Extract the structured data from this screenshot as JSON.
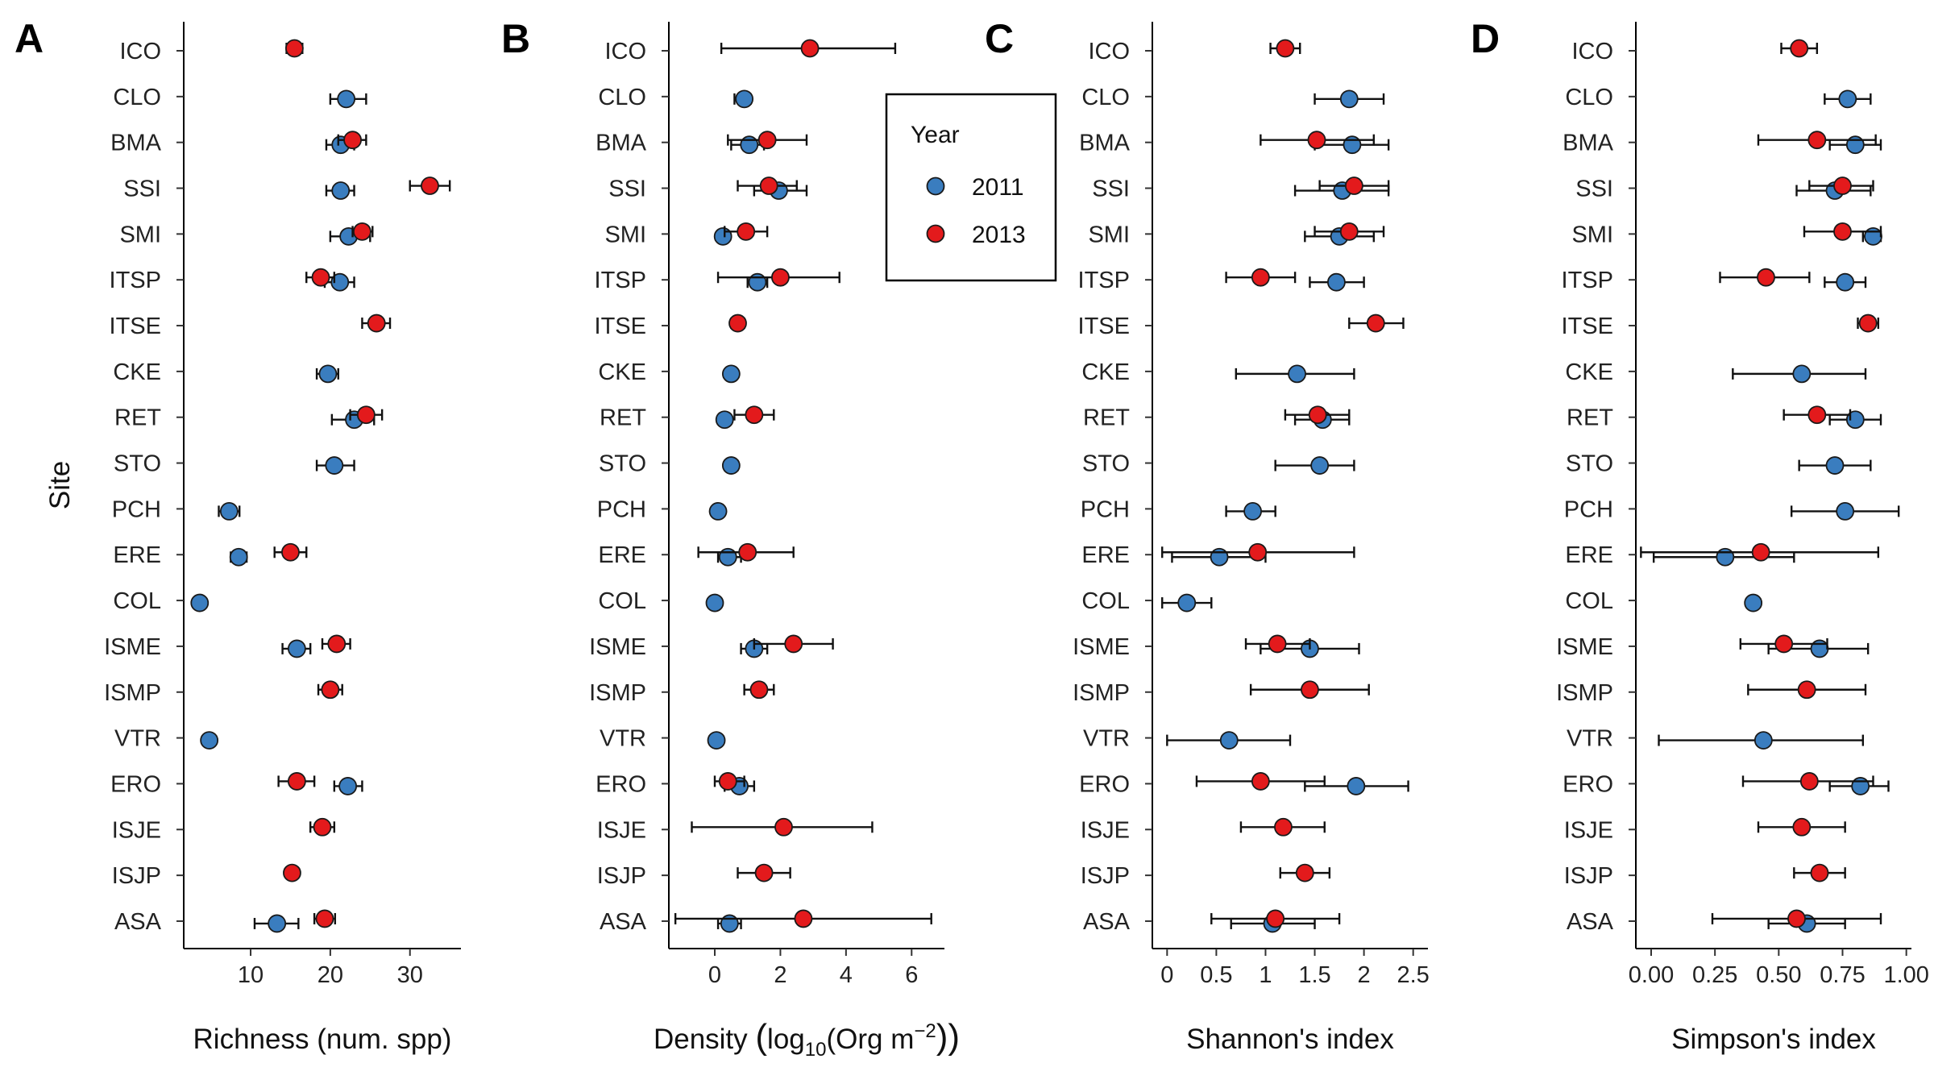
{
  "figure": {
    "y_title": "Site",
    "sites": [
      "ICO",
      "CLO",
      "BMA",
      "SSI",
      "SMI",
      "ITSP",
      "ITSE",
      "CKE",
      "RET",
      "STO",
      "PCH",
      "ERE",
      "COL",
      "ISME",
      "ISMP",
      "VTR",
      "ERO",
      "ISJE",
      "ISJP",
      "ASA"
    ],
    "legend": {
      "title": "Year",
      "entries": [
        {
          "label": "2011",
          "color": "#3a7dbf"
        },
        {
          "label": "2013",
          "color": "#e31a1c"
        }
      ]
    }
  },
  "chart_data": [
    {
      "type": "scatter",
      "panel": "A",
      "xlabel": "Richness (num. spp)",
      "xlim": [
        1.6,
        36.4
      ],
      "xticks": [
        10,
        20,
        30
      ],
      "series": [
        {
          "name": "2011",
          "points": [
            {
              "site": "CLO",
              "x": 22,
              "lo": 20,
              "hi": 24.5
            },
            {
              "site": "BMA",
              "x": 21.3,
              "lo": 19.5,
              "hi": 23
            },
            {
              "site": "SSI",
              "x": 21.3,
              "lo": 19.5,
              "hi": 23
            },
            {
              "site": "SMI",
              "x": 22.3,
              "lo": 20,
              "hi": 25
            },
            {
              "site": "ITSP",
              "x": 21.2,
              "lo": 19.3,
              "hi": 23
            },
            {
              "site": "CKE",
              "x": 19.7,
              "lo": 18.3,
              "hi": 21
            },
            {
              "site": "RET",
              "x": 23,
              "lo": 20.2,
              "hi": 25.5
            },
            {
              "site": "STO",
              "x": 20.5,
              "lo": 18.3,
              "hi": 23
            },
            {
              "site": "PCH",
              "x": 7.3,
              "lo": 6,
              "hi": 8.6
            },
            {
              "site": "ERE",
              "x": 8.5,
              "lo": 7.5,
              "hi": 9.5
            },
            {
              "site": "COL",
              "x": 3.6,
              "lo": 3.6,
              "hi": 3.6
            },
            {
              "site": "ISME",
              "x": 15.8,
              "lo": 14,
              "hi": 17.5
            },
            {
              "site": "VTR",
              "x": 4.8,
              "lo": 4.3,
              "hi": 5.3
            },
            {
              "site": "ERO",
              "x": 22.2,
              "lo": 20.5,
              "hi": 24
            },
            {
              "site": "ASA",
              "x": 13.3,
              "lo": 10.5,
              "hi": 16
            }
          ]
        },
        {
          "name": "2013",
          "points": [
            {
              "site": "ICO",
              "x": 15.5,
              "lo": 14.5,
              "hi": 16.5
            },
            {
              "site": "BMA",
              "x": 22.8,
              "lo": 21,
              "hi": 24.5
            },
            {
              "site": "SSI",
              "x": 32.5,
              "lo": 30,
              "hi": 35
            },
            {
              "site": "SMI",
              "x": 24,
              "lo": 22.8,
              "hi": 25.3
            },
            {
              "site": "ITSP",
              "x": 18.8,
              "lo": 17,
              "hi": 20.5
            },
            {
              "site": "ITSE",
              "x": 25.8,
              "lo": 24,
              "hi": 27.5
            },
            {
              "site": "RET",
              "x": 24.5,
              "lo": 22.5,
              "hi": 26.5
            },
            {
              "site": "ERE",
              "x": 15,
              "lo": 13,
              "hi": 17
            },
            {
              "site": "ISME",
              "x": 20.8,
              "lo": 19,
              "hi": 22.5
            },
            {
              "site": "ISMP",
              "x": 20,
              "lo": 18.5,
              "hi": 21.5
            },
            {
              "site": "ERO",
              "x": 15.8,
              "lo": 13.5,
              "hi": 18
            },
            {
              "site": "ISJE",
              "x": 19,
              "lo": 17.5,
              "hi": 20.5
            },
            {
              "site": "ISJP",
              "x": 15.2,
              "lo": 14.5,
              "hi": 16
            },
            {
              "site": "ASA",
              "x": 19.3,
              "lo": 18,
              "hi": 20.6
            }
          ]
        }
      ]
    },
    {
      "type": "scatter",
      "panel": "B",
      "xlabel": "Density (log10(Org m−2))",
      "xlim": [
        -1.4,
        7.0
      ],
      "xticks": [
        0,
        2,
        4,
        6
      ],
      "series": [
        {
          "name": "2011",
          "points": [
            {
              "site": "CLO",
              "x": 0.9,
              "lo": 0.6,
              "hi": 1.1
            },
            {
              "site": "BMA",
              "x": 1.05,
              "lo": 0.5,
              "hi": 1.5
            },
            {
              "site": "SSI",
              "x": 1.95,
              "lo": 1.2,
              "hi": 2.8
            },
            {
              "site": "SMI",
              "x": 0.25,
              "lo": 0.15,
              "hi": 0.35
            },
            {
              "site": "ITSP",
              "x": 1.3,
              "lo": 1.0,
              "hi": 1.6
            },
            {
              "site": "CKE",
              "x": 0.5,
              "lo": 0.45,
              "hi": 0.55
            },
            {
              "site": "RET",
              "x": 0.3,
              "lo": 0.25,
              "hi": 0.35
            },
            {
              "site": "STO",
              "x": 0.5,
              "lo": 0.3,
              "hi": 0.7
            },
            {
              "site": "PCH",
              "x": 0.1,
              "lo": 0.1,
              "hi": 0.1
            },
            {
              "site": "ERE",
              "x": 0.4,
              "lo": 0.1,
              "hi": 0.8
            },
            {
              "site": "COL",
              "x": 0.0,
              "lo": 0.0,
              "hi": 0.0
            },
            {
              "site": "ISME",
              "x": 1.2,
              "lo": 0.8,
              "hi": 1.6
            },
            {
              "site": "VTR",
              "x": 0.05,
              "lo": 0.05,
              "hi": 0.05
            },
            {
              "site": "ERO",
              "x": 0.75,
              "lo": 0.3,
              "hi": 1.2
            },
            {
              "site": "ASA",
              "x": 0.45,
              "lo": 0.1,
              "hi": 0.8
            }
          ]
        },
        {
          "name": "2013",
          "points": [
            {
              "site": "ICO",
              "x": 2.9,
              "lo": 0.2,
              "hi": 5.5
            },
            {
              "site": "BMA",
              "x": 1.6,
              "lo": 0.4,
              "hi": 2.8
            },
            {
              "site": "SSI",
              "x": 1.65,
              "lo": 0.7,
              "hi": 2.5
            },
            {
              "site": "SMI",
              "x": 0.95,
              "lo": 0.3,
              "hi": 1.6
            },
            {
              "site": "ITSP",
              "x": 2.0,
              "lo": 0.1,
              "hi": 3.8
            },
            {
              "site": "ITSE",
              "x": 0.7,
              "lo": 0.5,
              "hi": 0.9
            },
            {
              "site": "RET",
              "x": 1.2,
              "lo": 0.6,
              "hi": 1.8
            },
            {
              "site": "ERE",
              "x": 1.0,
              "lo": -0.5,
              "hi": 2.4
            },
            {
              "site": "ISME",
              "x": 2.4,
              "lo": 1.2,
              "hi": 3.6
            },
            {
              "site": "ISMP",
              "x": 1.35,
              "lo": 0.9,
              "hi": 1.8
            },
            {
              "site": "ERO",
              "x": 0.4,
              "lo": 0.0,
              "hi": 0.9
            },
            {
              "site": "ISJE",
              "x": 2.1,
              "lo": -0.7,
              "hi": 4.8
            },
            {
              "site": "ISJP",
              "x": 1.5,
              "lo": 0.7,
              "hi": 2.3
            },
            {
              "site": "ASA",
              "x": 2.7,
              "lo": -1.2,
              "hi": 6.6
            }
          ]
        }
      ]
    },
    {
      "type": "scatter",
      "panel": "C",
      "xlabel": "Shannon's index",
      "xlim": [
        -0.15,
        2.65
      ],
      "xticks": [
        0.0,
        0.5,
        1.0,
        1.5,
        2.0,
        2.5
      ],
      "series": [
        {
          "name": "2011",
          "points": [
            {
              "site": "CLO",
              "x": 1.85,
              "lo": 1.5,
              "hi": 2.2
            },
            {
              "site": "BMA",
              "x": 1.88,
              "lo": 1.5,
              "hi": 2.25
            },
            {
              "site": "SSI",
              "x": 1.78,
              "lo": 1.3,
              "hi": 2.25
            },
            {
              "site": "SMI",
              "x": 1.75,
              "lo": 1.4,
              "hi": 2.1
            },
            {
              "site": "ITSP",
              "x": 1.72,
              "lo": 1.45,
              "hi": 2.0
            },
            {
              "site": "CKE",
              "x": 1.32,
              "lo": 0.7,
              "hi": 1.9
            },
            {
              "site": "RET",
              "x": 1.58,
              "lo": 1.3,
              "hi": 1.85
            },
            {
              "site": "STO",
              "x": 1.55,
              "lo": 1.1,
              "hi": 1.9
            },
            {
              "site": "PCH",
              "x": 0.87,
              "lo": 0.6,
              "hi": 1.1
            },
            {
              "site": "ERE",
              "x": 0.53,
              "lo": 0.05,
              "hi": 1.0
            },
            {
              "site": "COL",
              "x": 0.2,
              "lo": -0.05,
              "hi": 0.45
            },
            {
              "site": "ISME",
              "x": 1.45,
              "lo": 0.95,
              "hi": 1.95
            },
            {
              "site": "VTR",
              "x": 0.63,
              "lo": 0.0,
              "hi": 1.25
            },
            {
              "site": "ERO",
              "x": 1.92,
              "lo": 1.4,
              "hi": 2.45
            },
            {
              "site": "ASA",
              "x": 1.07,
              "lo": 0.65,
              "hi": 1.5
            }
          ]
        },
        {
          "name": "2013",
          "points": [
            {
              "site": "ICO",
              "x": 1.2,
              "lo": 1.05,
              "hi": 1.35
            },
            {
              "site": "BMA",
              "x": 1.52,
              "lo": 0.95,
              "hi": 2.1
            },
            {
              "site": "SSI",
              "x": 1.9,
              "lo": 1.55,
              "hi": 2.25
            },
            {
              "site": "SMI",
              "x": 1.85,
              "lo": 1.5,
              "hi": 2.2
            },
            {
              "site": "ITSP",
              "x": 0.95,
              "lo": 0.6,
              "hi": 1.3
            },
            {
              "site": "ITSE",
              "x": 2.12,
              "lo": 1.85,
              "hi": 2.4
            },
            {
              "site": "RET",
              "x": 1.53,
              "lo": 1.2,
              "hi": 1.85
            },
            {
              "site": "ERE",
              "x": 0.92,
              "lo": -0.05,
              "hi": 1.9
            },
            {
              "site": "ISME",
              "x": 1.12,
              "lo": 0.8,
              "hi": 1.45
            },
            {
              "site": "ISMP",
              "x": 1.45,
              "lo": 0.85,
              "hi": 2.05
            },
            {
              "site": "ERO",
              "x": 0.95,
              "lo": 0.3,
              "hi": 1.6
            },
            {
              "site": "ISJE",
              "x": 1.18,
              "lo": 0.75,
              "hi": 1.6
            },
            {
              "site": "ISJP",
              "x": 1.4,
              "lo": 1.15,
              "hi": 1.65
            },
            {
              "site": "ASA",
              "x": 1.1,
              "lo": 0.45,
              "hi": 1.75
            }
          ]
        }
      ]
    },
    {
      "type": "scatter",
      "panel": "D",
      "xlabel": "Simpson's index",
      "xlim": [
        -0.06,
        1.02
      ],
      "xticks": [
        0.0,
        0.25,
        0.5,
        0.75,
        1.0
      ],
      "xticklabels": [
        "0.00",
        "0.25",
        "0.50",
        "0.75",
        "1.00"
      ],
      "series": [
        {
          "name": "2011",
          "points": [
            {
              "site": "CLO",
              "x": 0.77,
              "lo": 0.68,
              "hi": 0.86
            },
            {
              "site": "BMA",
              "x": 0.8,
              "lo": 0.7,
              "hi": 0.9
            },
            {
              "site": "SSI",
              "x": 0.72,
              "lo": 0.57,
              "hi": 0.86
            },
            {
              "site": "SMI",
              "x": 0.87,
              "lo": 0.83,
              "hi": 0.9
            },
            {
              "site": "ITSP",
              "x": 0.76,
              "lo": 0.68,
              "hi": 0.84
            },
            {
              "site": "CKE",
              "x": 0.59,
              "lo": 0.32,
              "hi": 0.84
            },
            {
              "site": "RET",
              "x": 0.8,
              "lo": 0.7,
              "hi": 0.9
            },
            {
              "site": "STO",
              "x": 0.72,
              "lo": 0.58,
              "hi": 0.86
            },
            {
              "site": "PCH",
              "x": 0.76,
              "lo": 0.55,
              "hi": 0.97
            },
            {
              "site": "ERE",
              "x": 0.29,
              "lo": 0.01,
              "hi": 0.56
            },
            {
              "site": "COL",
              "x": 0.4,
              "lo": 0.4,
              "hi": 0.4
            },
            {
              "site": "ISME",
              "x": 0.66,
              "lo": 0.46,
              "hi": 0.85
            },
            {
              "site": "VTR",
              "x": 0.44,
              "lo": 0.03,
              "hi": 0.83
            },
            {
              "site": "ERO",
              "x": 0.82,
              "lo": 0.7,
              "hi": 0.93
            },
            {
              "site": "ASA",
              "x": 0.61,
              "lo": 0.46,
              "hi": 0.76
            }
          ]
        },
        {
          "name": "2013",
          "points": [
            {
              "site": "ICO",
              "x": 0.58,
              "lo": 0.51,
              "hi": 0.65
            },
            {
              "site": "BMA",
              "x": 0.65,
              "lo": 0.42,
              "hi": 0.88
            },
            {
              "site": "SSI",
              "x": 0.75,
              "lo": 0.62,
              "hi": 0.87
            },
            {
              "site": "SMI",
              "x": 0.75,
              "lo": 0.6,
              "hi": 0.9
            },
            {
              "site": "ITSP",
              "x": 0.45,
              "lo": 0.27,
              "hi": 0.62
            },
            {
              "site": "ITSE",
              "x": 0.85,
              "lo": 0.81,
              "hi": 0.89
            },
            {
              "site": "RET",
              "x": 0.65,
              "lo": 0.52,
              "hi": 0.78
            },
            {
              "site": "ERE",
              "x": 0.43,
              "lo": -0.04,
              "hi": 0.89
            },
            {
              "site": "ISME",
              "x": 0.52,
              "lo": 0.35,
              "hi": 0.69
            },
            {
              "site": "ISMP",
              "x": 0.61,
              "lo": 0.38,
              "hi": 0.84
            },
            {
              "site": "ERO",
              "x": 0.62,
              "lo": 0.36,
              "hi": 0.87
            },
            {
              "site": "ISJE",
              "x": 0.59,
              "lo": 0.42,
              "hi": 0.76
            },
            {
              "site": "ISJP",
              "x": 0.66,
              "lo": 0.56,
              "hi": 0.76
            },
            {
              "site": "ASA",
              "x": 0.57,
              "lo": 0.24,
              "hi": 0.9
            }
          ]
        }
      ]
    }
  ]
}
